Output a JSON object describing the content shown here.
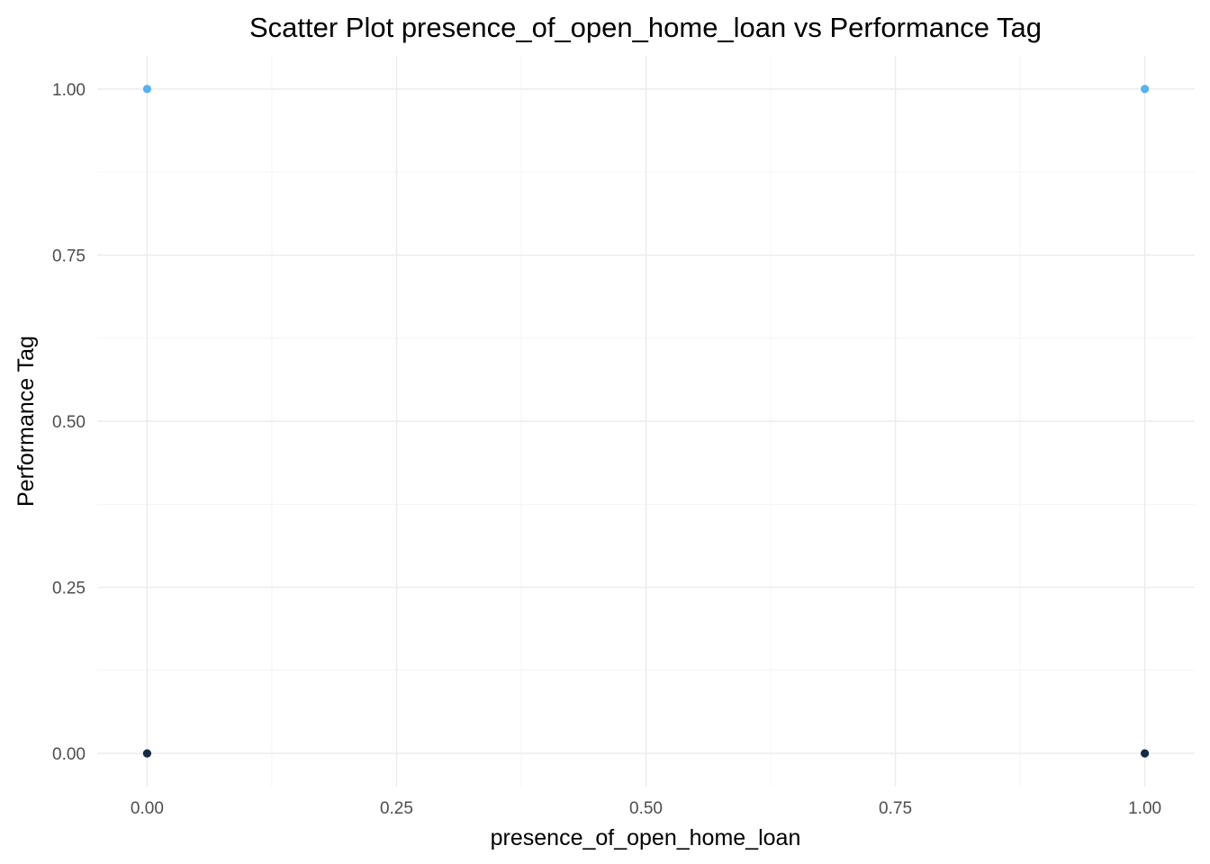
{
  "chart_data": {
    "type": "scatter",
    "title": "Scatter Plot presence_of_open_home_loan vs Performance Tag",
    "xlabel": "presence_of_open_home_loan",
    "ylabel": "Performance Tag",
    "xlim": [
      -0.05,
      1.05
    ],
    "ylim": [
      -0.05,
      1.05
    ],
    "x_ticks": [
      0.0,
      0.25,
      0.5,
      0.75,
      1.0
    ],
    "x_tick_labels": [
      "0.00",
      "0.25",
      "0.50",
      "0.75",
      "1.00"
    ],
    "y_ticks": [
      0.0,
      0.25,
      0.5,
      0.75,
      1.0
    ],
    "y_tick_labels": [
      "0.00",
      "0.25",
      "0.50",
      "0.75",
      "1.00"
    ],
    "grid": true,
    "points": [
      {
        "x": 0,
        "y": 1,
        "color": "#56b1f7"
      },
      {
        "x": 1,
        "y": 1,
        "color": "#56b1f7"
      },
      {
        "x": 0,
        "y": 0,
        "color": "#132b43"
      },
      {
        "x": 1,
        "y": 0,
        "color": "#132b43"
      }
    ]
  }
}
